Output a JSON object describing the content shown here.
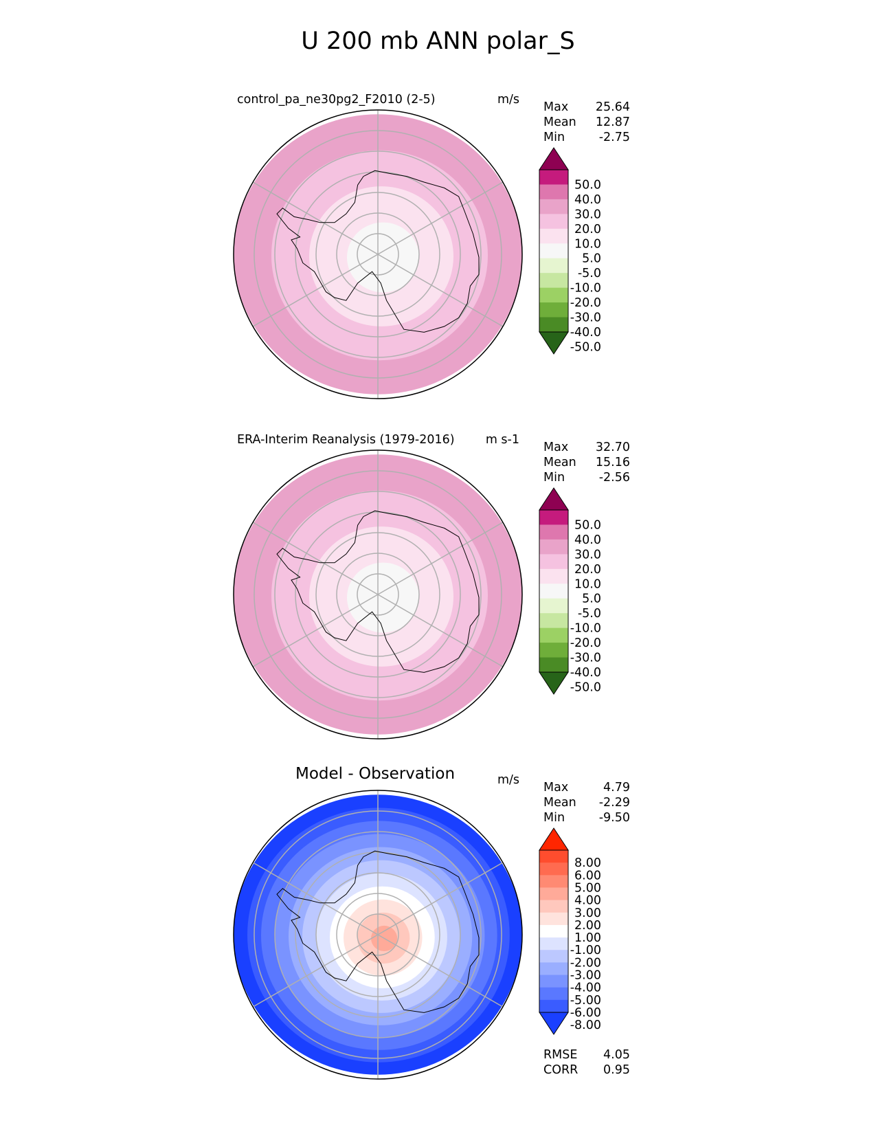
{
  "title": "U 200 mb ANN polar_S",
  "panels": [
    {
      "title": "control_pa_ne30pg2_F2010 (2-5)",
      "units": "m/s",
      "stats": [
        {
          "label": "Max",
          "value": "25.64"
        },
        {
          "label": "Mean",
          "value": "12.87"
        },
        {
          "label": "Min",
          "value": "-2.75"
        }
      ],
      "colorbar": {
        "ticks": [
          "50.0",
          "40.0",
          "30.0",
          "20.0",
          "10.0",
          "5.0",
          "-5.0",
          "-10.0",
          "-20.0",
          "-30.0",
          "-40.0",
          "-50.0"
        ],
        "colors": [
          "#8e0152",
          "#c51b7d",
          "#de77ae",
          "#e9a3c9",
          "#f5c2e0",
          "#fbe2ef",
          "#f7f7f7",
          "#e6f5d0",
          "#c7e7a1",
          "#9cd164",
          "#6fae3a",
          "#4a8b25",
          "#276419"
        ]
      },
      "field": {
        "bands": [
          "#e9a3c9",
          "#f5c2e0",
          "#fbe2ef",
          "#f7f7f7"
        ]
      }
    },
    {
      "title": "ERA-Interim Reanalysis (1979-2016)",
      "units": "m s-1",
      "stats": [
        {
          "label": "Max",
          "value": "32.70"
        },
        {
          "label": "Mean",
          "value": "15.16"
        },
        {
          "label": "Min",
          "value": "-2.56"
        }
      ],
      "colorbar": {
        "ticks": [
          "50.0",
          "40.0",
          "30.0",
          "20.0",
          "10.0",
          "5.0",
          "-5.0",
          "-10.0",
          "-20.0",
          "-30.0",
          "-40.0",
          "-50.0"
        ],
        "colors": [
          "#8e0152",
          "#c51b7d",
          "#de77ae",
          "#e9a3c9",
          "#f5c2e0",
          "#fbe2ef",
          "#f7f7f7",
          "#e6f5d0",
          "#c7e7a1",
          "#9cd164",
          "#6fae3a",
          "#4a8b25",
          "#276419"
        ]
      },
      "field": {
        "bands": [
          "#e9a3c9",
          "#f5c2e0",
          "#fbe2ef",
          "#f7f7f7"
        ]
      }
    },
    {
      "title": "Model - Observation",
      "units": "m/s",
      "stats": [
        {
          "label": "Max",
          "value": "4.79"
        },
        {
          "label": "Mean",
          "value": "-2.29"
        },
        {
          "label": "Min",
          "value": "-9.50"
        }
      ],
      "extra": [
        {
          "label": "RMSE",
          "value": "4.05"
        },
        {
          "label": "CORR",
          "value": "0.95"
        }
      ],
      "colorbar": {
        "ticks": [
          "8.00",
          "6.00",
          "5.00",
          "4.00",
          "3.00",
          "2.00",
          "1.00",
          "-1.00",
          "-2.00",
          "-3.00",
          "-4.00",
          "-5.00",
          "-6.00",
          "-8.00"
        ],
        "colors": [
          "#ff2600",
          "#ff4d2e",
          "#ff6b50",
          "#ff8a73",
          "#ffaa99",
          "#ffc8bd",
          "#ffe3dd",
          "#ffffff",
          "#dde3ff",
          "#bcc8ff",
          "#9aaeff",
          "#7a93ff",
          "#5a78ff",
          "#3a5cff",
          "#1a40ff"
        ]
      },
      "field": {
        "bands": [
          "#1a40ff",
          "#3a5cff",
          "#5a78ff",
          "#7a93ff",
          "#9aaeff",
          "#bcc8ff",
          "#dde3ff",
          "#ffffff",
          "#ffe3dd",
          "#ffc8bd",
          "#ffaa99"
        ]
      }
    }
  ]
}
